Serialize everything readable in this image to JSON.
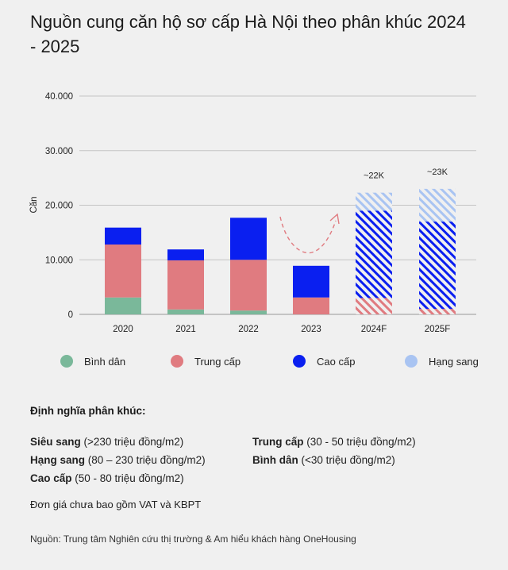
{
  "title": "Nguồn cung căn hộ sơ cấp Hà Nội theo phân khúc 2024 - 2025",
  "chart_data": {
    "type": "bar",
    "stacked": true,
    "ylabel": "Căn",
    "ylim": [
      0,
      40000
    ],
    "yticks": [
      0,
      10000,
      20000,
      30000,
      40000
    ],
    "ytick_labels": [
      "0",
      "10.000",
      "20.000",
      "30.000",
      "40.000"
    ],
    "categories": [
      "2020",
      "2021",
      "2022",
      "2023",
      "2024F",
      "2025F"
    ],
    "forecast": [
      false,
      false,
      false,
      false,
      true,
      true
    ],
    "series": [
      {
        "name": "Bình dân",
        "color": "#7ab89a",
        "values": [
          3100,
          900,
          700,
          0,
          0,
          0
        ]
      },
      {
        "name": "Trung cấp",
        "color": "#e07b80",
        "values": [
          9700,
          9000,
          9300,
          3100,
          3000,
          1000
        ]
      },
      {
        "name": "Cao cấp",
        "color": "#0a1ff0",
        "values": [
          3100,
          2000,
          7700,
          5800,
          16000,
          16000
        ]
      },
      {
        "name": "Hạng sang",
        "color": "#a9c4f2",
        "values": [
          0,
          0,
          0,
          0,
          3300,
          6000
        ]
      }
    ],
    "annotations": [
      {
        "category": "2024F",
        "text": "~22K"
      },
      {
        "category": "2025F",
        "text": "~23K"
      }
    ],
    "grid": true,
    "legend": "bottom"
  },
  "definitions": {
    "heading": "Định nghĩa phân khúc:",
    "items": [
      {
        "name": "Siêu sang",
        "range": " (>230 triệu đồng/m2)"
      },
      {
        "name": "Hạng sang",
        "range": " (80 – 230 triệu đồng/m2)"
      },
      {
        "name": "Cao cấp",
        "range": " (50 - 80 triệu đồng/m2)"
      },
      {
        "name": "Trung cấp",
        "range": " (30 - 50 triệu đồng/m2)"
      },
      {
        "name": "Bình dân",
        "range": " (<30 triệu đồng/m2)"
      }
    ]
  },
  "note": "Đơn giá chưa bao gồm VAT và KBPT",
  "source": "Nguồn: Trung tâm Nghiên cứu thị trường & Am hiểu khách hàng OneHousing"
}
